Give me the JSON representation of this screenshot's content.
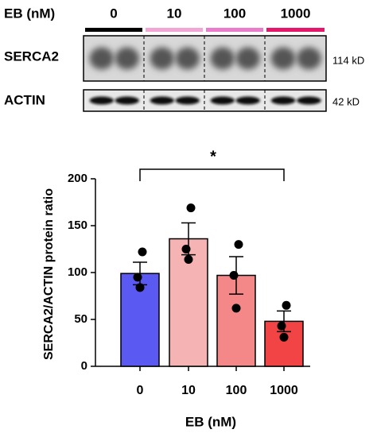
{
  "blot": {
    "label": "EB (nM)",
    "lanes": [
      "0",
      "10",
      "100",
      "1000"
    ],
    "lane_colors": [
      "#000000",
      "#f2a6d6",
      "#ea7ccb",
      "#e4176a"
    ],
    "rows": [
      {
        "name": "SERCA2",
        "size": "114 kD"
      },
      {
        "name": "ACTIN",
        "size": "42 kD"
      }
    ]
  },
  "chart_data": {
    "type": "bar",
    "xlabel": "EB (nM)",
    "ylabel": "SERCA2/ACTIN protein ratio",
    "categories": [
      "0",
      "10",
      "100",
      "1000"
    ],
    "values": [
      99,
      136,
      97,
      48
    ],
    "error": [
      12,
      17,
      20,
      11
    ],
    "points": [
      [
        122,
        95,
        84
      ],
      [
        169,
        125,
        114
      ],
      [
        130,
        97,
        62
      ],
      [
        65,
        43,
        31
      ]
    ],
    "colors": [
      "#5a5af2",
      "#f6b3b3",
      "#f48787",
      "#f24444"
    ],
    "ylim": [
      0,
      200
    ],
    "yticks": [
      0,
      50,
      100,
      150,
      200
    ],
    "annotation": "*"
  }
}
